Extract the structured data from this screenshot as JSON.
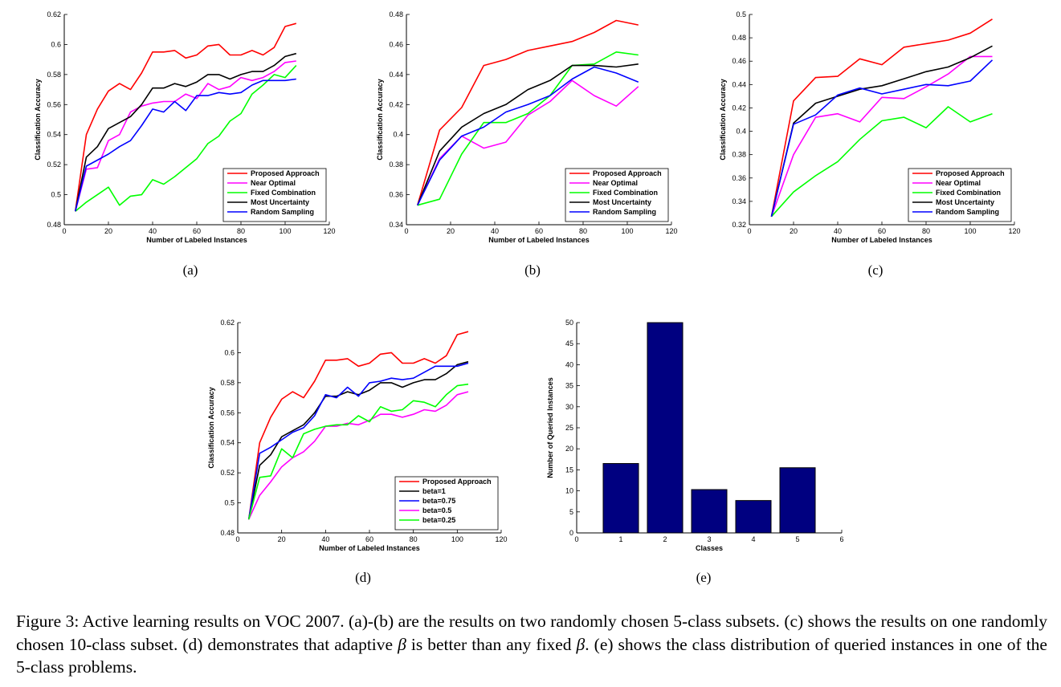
{
  "figure": {
    "subfig_labels": [
      "(a)",
      "(b)",
      "(c)",
      "(d)",
      "(e)"
    ],
    "caption": {
      "part1": "Figure 3: Active learning results on VOC 2007. (a)-(b) are the results on two randomly chosen 5-class subsets. (c) shows the results on one randomly chosen 10-class subset. (d) demonstrates that adaptive ",
      "beta1": "β",
      "part2": " is better than any fixed ",
      "beta2": "β",
      "part3": ". (e) shows the class distribution of queried instances in one of the 5-class problems."
    }
  },
  "chart_data": [
    {
      "id": "a",
      "type": "line",
      "xlabel": "Number of Labeled Instances",
      "ylabel": "Classification Accuracy",
      "xlim": [
        0,
        120
      ],
      "ylim": [
        0.48,
        0.62
      ],
      "xticks": [
        0,
        20,
        40,
        60,
        80,
        100,
        120
      ],
      "yticks": [
        0.48,
        0.5,
        0.52,
        0.54,
        0.56,
        0.58,
        0.6,
        0.62
      ],
      "legend_position": "bottom-right",
      "x": [
        5,
        10,
        15,
        20,
        25,
        30,
        35,
        40,
        45,
        50,
        55,
        60,
        65,
        70,
        75,
        80,
        85,
        90,
        95,
        100,
        105
      ],
      "series": [
        {
          "name": "Proposed Approach",
          "color": "#ff0000",
          "values": [
            0.489,
            0.54,
            0.557,
            0.569,
            0.574,
            0.57,
            0.581,
            0.595,
            0.595,
            0.596,
            0.591,
            0.593,
            0.599,
            0.6,
            0.593,
            0.593,
            0.596,
            0.593,
            0.598,
            0.612,
            0.614
          ]
        },
        {
          "name": "Near Optimal",
          "color": "#ff00ff",
          "values": [
            0.489,
            0.517,
            0.518,
            0.536,
            0.54,
            0.555,
            0.559,
            0.561,
            0.562,
            0.562,
            0.567,
            0.564,
            0.574,
            0.57,
            0.572,
            0.578,
            0.576,
            0.578,
            0.582,
            0.588,
            0.589
          ]
        },
        {
          "name": "Fixed Combination",
          "color": "#00ff00",
          "values": [
            0.489,
            0.495,
            0.5,
            0.505,
            0.493,
            0.499,
            0.5,
            0.51,
            0.507,
            0.512,
            0.518,
            0.524,
            0.534,
            0.539,
            0.549,
            0.554,
            0.567,
            0.573,
            0.58,
            0.578,
            0.586
          ]
        },
        {
          "name": "Most Uncertainty",
          "color": "#000000",
          "values": [
            0.489,
            0.525,
            0.532,
            0.544,
            0.548,
            0.552,
            0.56,
            0.571,
            0.571,
            0.574,
            0.572,
            0.575,
            0.58,
            0.58,
            0.577,
            0.58,
            0.582,
            0.582,
            0.586,
            0.592,
            0.594
          ]
        },
        {
          "name": "Random Sampling",
          "color": "#0000ff",
          "values": [
            0.489,
            0.519,
            0.523,
            0.527,
            0.532,
            0.536,
            0.546,
            0.557,
            0.555,
            0.562,
            0.556,
            0.566,
            0.566,
            0.568,
            0.567,
            0.568,
            0.573,
            0.576,
            0.576,
            0.576,
            0.577
          ]
        }
      ]
    },
    {
      "id": "b",
      "type": "line",
      "xlabel": "Number of Labeled Instances",
      "ylabel": "Classification Accuracy",
      "xlim": [
        0,
        120
      ],
      "ylim": [
        0.34,
        0.48
      ],
      "xticks": [
        0,
        20,
        40,
        60,
        80,
        100,
        120
      ],
      "yticks": [
        0.34,
        0.36,
        0.38,
        0.4,
        0.42,
        0.44,
        0.46,
        0.48
      ],
      "legend_position": "bottom-right",
      "x": [
        5,
        15,
        25,
        35,
        45,
        55,
        65,
        75,
        85,
        95,
        105
      ],
      "series": [
        {
          "name": "Proposed Approach",
          "color": "#ff0000",
          "values": [
            0.353,
            0.403,
            0.418,
            0.446,
            0.45,
            0.456,
            0.459,
            0.462,
            0.468,
            0.476,
            0.473
          ]
        },
        {
          "name": "Near Optimal",
          "color": "#ff00ff",
          "values": [
            0.353,
            0.384,
            0.399,
            0.391,
            0.395,
            0.413,
            0.422,
            0.436,
            0.426,
            0.419,
            0.432
          ]
        },
        {
          "name": "Fixed Combination",
          "color": "#00ff00",
          "values": [
            0.353,
            0.357,
            0.387,
            0.408,
            0.408,
            0.414,
            0.426,
            0.446,
            0.447,
            0.455,
            0.453
          ]
        },
        {
          "name": "Most Uncertainty",
          "color": "#000000",
          "values": [
            0.353,
            0.389,
            0.405,
            0.414,
            0.42,
            0.43,
            0.436,
            0.446,
            0.446,
            0.445,
            0.447
          ]
        },
        {
          "name": "Random Sampling",
          "color": "#0000ff",
          "values": [
            0.353,
            0.383,
            0.399,
            0.405,
            0.415,
            0.42,
            0.426,
            0.437,
            0.445,
            0.441,
            0.435
          ]
        }
      ]
    },
    {
      "id": "c",
      "type": "line",
      "xlabel": "Number of Labeled Instances",
      "ylabel": "Classification Accuracy",
      "xlim": [
        0,
        120
      ],
      "ylim": [
        0.32,
        0.5
      ],
      "xticks": [
        0,
        20,
        40,
        60,
        80,
        100,
        120
      ],
      "yticks": [
        0.32,
        0.34,
        0.36,
        0.38,
        0.4,
        0.42,
        0.44,
        0.46,
        0.48,
        0.5
      ],
      "legend_position": "bottom-right",
      "x": [
        10,
        20,
        30,
        40,
        50,
        60,
        70,
        80,
        90,
        100,
        110
      ],
      "series": [
        {
          "name": "Proposed Approach",
          "color": "#ff0000",
          "values": [
            0.327,
            0.426,
            0.446,
            0.447,
            0.462,
            0.457,
            0.472,
            0.475,
            0.478,
            0.484,
            0.496
          ]
        },
        {
          "name": "Near Optimal",
          "color": "#ff00ff",
          "values": [
            0.327,
            0.38,
            0.412,
            0.415,
            0.408,
            0.429,
            0.428,
            0.438,
            0.449,
            0.464,
            0.464
          ]
        },
        {
          "name": "Fixed Combination",
          "color": "#00ff00",
          "values": [
            0.327,
            0.348,
            0.362,
            0.374,
            0.393,
            0.409,
            0.412,
            0.403,
            0.421,
            0.408,
            0.415
          ]
        },
        {
          "name": "Most Uncertainty",
          "color": "#000000",
          "values": [
            0.327,
            0.407,
            0.424,
            0.43,
            0.436,
            0.439,
            0.445,
            0.451,
            0.455,
            0.463,
            0.473
          ]
        },
        {
          "name": "Random Sampling",
          "color": "#0000ff",
          "values": [
            0.327,
            0.406,
            0.414,
            0.431,
            0.437,
            0.432,
            0.436,
            0.44,
            0.439,
            0.443,
            0.461
          ]
        }
      ]
    },
    {
      "id": "d",
      "type": "line",
      "xlabel": "Number of Labeled Instances",
      "ylabel": "Classification Accuracy",
      "xlim": [
        0,
        120
      ],
      "ylim": [
        0.48,
        0.62
      ],
      "xticks": [
        0,
        20,
        40,
        60,
        80,
        100,
        120
      ],
      "yticks": [
        0.48,
        0.5,
        0.52,
        0.54,
        0.56,
        0.58,
        0.6,
        0.62
      ],
      "legend_position": "bottom-right",
      "x": [
        5,
        10,
        15,
        20,
        25,
        30,
        35,
        40,
        45,
        50,
        55,
        60,
        65,
        70,
        75,
        80,
        85,
        90,
        95,
        100,
        105
      ],
      "series": [
        {
          "name": "Proposed Approach",
          "color": "#ff0000",
          "values": [
            0.489,
            0.54,
            0.557,
            0.569,
            0.574,
            0.57,
            0.581,
            0.595,
            0.595,
            0.596,
            0.591,
            0.593,
            0.599,
            0.6,
            0.593,
            0.593,
            0.596,
            0.593,
            0.598,
            0.612,
            0.614
          ]
        },
        {
          "name": "beta=1",
          "color": "#000000",
          "values": [
            0.489,
            0.525,
            0.532,
            0.544,
            0.548,
            0.552,
            0.56,
            0.571,
            0.571,
            0.574,
            0.572,
            0.575,
            0.58,
            0.58,
            0.577,
            0.58,
            0.582,
            0.582,
            0.586,
            0.592,
            0.594
          ]
        },
        {
          "name": "beta=0.75",
          "color": "#0000ff",
          "values": [
            0.489,
            0.533,
            0.537,
            0.542,
            0.547,
            0.55,
            0.558,
            0.572,
            0.57,
            0.577,
            0.571,
            0.58,
            0.581,
            0.583,
            0.582,
            0.583,
            0.587,
            0.591,
            0.591,
            0.591,
            0.593
          ]
        },
        {
          "name": "beta=0.5",
          "color": "#ff00ff",
          "values": [
            0.489,
            0.505,
            0.514,
            0.524,
            0.53,
            0.534,
            0.541,
            0.551,
            0.551,
            0.553,
            0.552,
            0.555,
            0.559,
            0.559,
            0.557,
            0.559,
            0.562,
            0.561,
            0.565,
            0.572,
            0.574
          ]
        },
        {
          "name": "beta=0.25",
          "color": "#00ff00",
          "values": [
            0.489,
            0.517,
            0.518,
            0.536,
            0.53,
            0.546,
            0.549,
            0.551,
            0.552,
            0.552,
            0.558,
            0.554,
            0.564,
            0.561,
            0.562,
            0.568,
            0.567,
            0.564,
            0.572,
            0.578,
            0.579
          ]
        }
      ]
    },
    {
      "id": "e",
      "type": "bar",
      "xlabel": "Classes",
      "ylabel": "Number of Queried Instances",
      "xlim": [
        0,
        6
      ],
      "ylim": [
        0,
        50
      ],
      "xticks": [
        0,
        1,
        2,
        3,
        4,
        5,
        6
      ],
      "yticks": [
        0,
        5,
        10,
        15,
        20,
        25,
        30,
        35,
        40,
        45,
        50
      ],
      "categories": [
        1,
        2,
        3,
        4,
        5
      ],
      "values": [
        16.5,
        50,
        10.3,
        7.7,
        15.5
      ],
      "bar_color": "#000080"
    }
  ]
}
